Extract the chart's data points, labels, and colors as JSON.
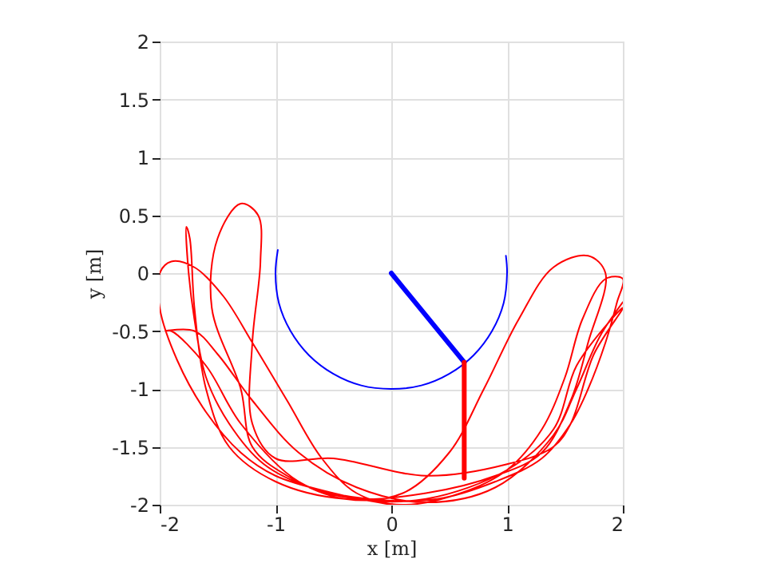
{
  "chart_data": {
    "type": "line",
    "xlabel": "x [m]",
    "ylabel": "y [m]",
    "xlim": [
      -2,
      2
    ],
    "ylim": [
      -2,
      2
    ],
    "xticks": [
      -2,
      -1,
      0,
      1,
      2
    ],
    "yticks": [
      -2,
      -1.5,
      -1,
      -0.5,
      0,
      0.5,
      1,
      1.5,
      2
    ],
    "grid": true,
    "marker": "none",
    "line_style": "solid",
    "series": [
      {
        "color": "#ff0000",
        "x": [
          0,
          -0.5,
          -1,
          -1.3,
          -1.6,
          -1.85,
          -2,
          -2,
          -1.9,
          -1.7,
          -1.45,
          -1.2,
          -0.9,
          -0.6,
          -0.3,
          0.1,
          0.6,
          1.0,
          1.3,
          1.5,
          1.65,
          1.85,
          2,
          1.95,
          1.85,
          1.7,
          1.55,
          1.3,
          0.9,
          0.4,
          -0.2,
          -0.7,
          -1.1,
          -1.4,
          -1.6,
          -1.7,
          -1.75,
          -1.77,
          -1.74,
          -1.7,
          -1.6,
          -1.4,
          -1.0,
          -0.4,
          0.3,
          0.9,
          1.3,
          1.55,
          1.7,
          1.85,
          1.7,
          1.4,
          1.1,
          0.8,
          0.5,
          0.1,
          -0.4,
          -0.9,
          -1.2,
          -1.3,
          -1.55,
          -1.5,
          -1.3,
          -1.15,
          -1.13,
          -1.2,
          -1.2,
          -1.0,
          -0.5,
          0.3,
          1.0,
          1.4,
          1.55,
          1.75,
          2,
          1.9,
          1.6,
          1.4,
          1.0,
          0.3,
          -0.3,
          -0.8,
          -1.3,
          -1.6,
          -1.9,
          -1.95,
          -1.7,
          -1.5,
          -1.2,
          -0.8,
          -0.3,
          0.3,
          0.9,
          1.4,
          1.6,
          1.8,
          2
        ],
        "values": [
          -2,
          -1.9,
          -1.75,
          -1.55,
          -1.2,
          -0.75,
          -0.3,
          0,
          0.1,
          0.05,
          -0.2,
          -0.6,
          -1.1,
          -1.6,
          -1.9,
          -2,
          -1.9,
          -1.7,
          -1.35,
          -0.9,
          -0.4,
          -0.05,
          -0.05,
          -0.25,
          -0.6,
          -1.0,
          -1.3,
          -1.6,
          -1.8,
          -1.95,
          -1.95,
          -1.85,
          -1.65,
          -1.3,
          -0.9,
          -0.4,
          0.0,
          0.4,
          0.3,
          -0.3,
          -1.0,
          -1.5,
          -1.8,
          -1.95,
          -1.9,
          -1.75,
          -1.55,
          -1.1,
          -0.6,
          0.0,
          0.15,
          0.05,
          -0.4,
          -1.0,
          -1.55,
          -1.9,
          -1.95,
          -1.75,
          -1.5,
          -1.0,
          -0.3,
          0.3,
          0.6,
          0.5,
          0.1,
          -0.6,
          -1.3,
          -1.6,
          -1.6,
          -1.75,
          -1.65,
          -1.5,
          -1.3,
          -0.7,
          -0.3,
          -0.4,
          -0.8,
          -1.35,
          -1.7,
          -1.95,
          -1.95,
          -1.8,
          -1.3,
          -0.8,
          -0.5,
          -0.5,
          -0.5,
          -0.7,
          -1.1,
          -1.55,
          -1.85,
          -1.98,
          -1.85,
          -1.4,
          -1.0,
          -0.55,
          -0.25
        ]
      },
      {
        "color": "#0000ff",
        "x": [
          -0.98,
          -1,
          -0.97,
          -0.87,
          -0.71,
          -0.5,
          -0.26,
          0,
          0.26,
          0.5,
          0.71,
          0.87,
          0.97,
          1,
          0.99
        ],
        "values": [
          0.2,
          0,
          -0.26,
          -0.5,
          -0.71,
          -0.87,
          -0.97,
          -1,
          -0.97,
          -0.87,
          -0.71,
          -0.5,
          -0.26,
          0,
          0.15
        ]
      },
      {
        "color": "#0000ff",
        "x": [
          0,
          0.63
        ],
        "values": [
          0,
          -0.77
        ]
      },
      {
        "color": "#ff0000",
        "x": [
          0.63,
          0.63
        ],
        "values": [
          -0.77,
          -1.77
        ]
      }
    ]
  }
}
